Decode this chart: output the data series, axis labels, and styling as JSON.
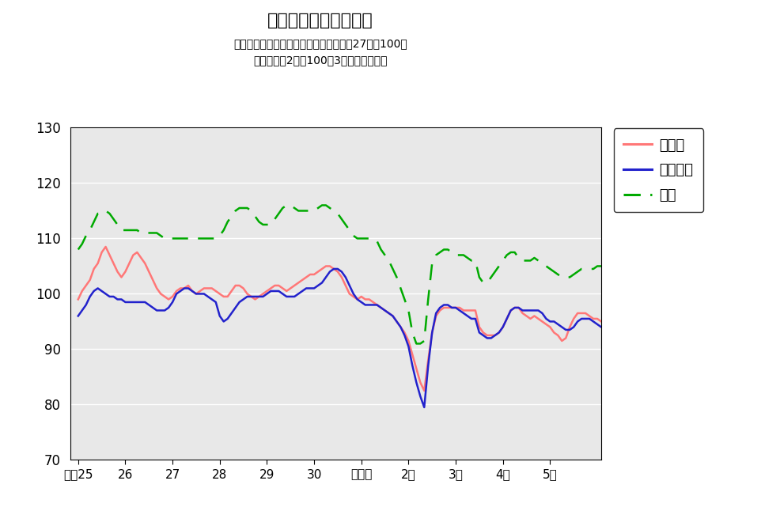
{
  "title": "鉱工業生産指数の推移",
  "subtitle_line1": "（季節調整済、鳥取県・中国地方：平成27年＝100、",
  "subtitle_line2": "全国：令和2年＝100、3ヶ月移動平均）",
  "ylim": [
    70,
    130
  ],
  "yticks": [
    70,
    80,
    90,
    100,
    110,
    120,
    130
  ],
  "legend_labels": [
    "鳥取県",
    "中国地方",
    "全国"
  ],
  "line_colors": [
    "#FF7777",
    "#2222CC",
    "#00AA00"
  ],
  "x_labels": [
    "平成25",
    "26",
    "27",
    "28",
    "29",
    "30",
    "令和元",
    "2年",
    "3年",
    "4年",
    "5年"
  ],
  "x_tick_positions": [
    0,
    12,
    24,
    36,
    48,
    60,
    72,
    84,
    96,
    108,
    120
  ],
  "bg_color": "#E8E8E8",
  "grid_color": "#FFFFFF",
  "tottori": [
    99.0,
    100.5,
    101.5,
    102.5,
    104.5,
    105.5,
    107.5,
    108.5,
    107.0,
    105.5,
    104.0,
    103.0,
    104.0,
    105.5,
    107.0,
    107.5,
    106.5,
    105.5,
    104.0,
    102.5,
    101.0,
    100.0,
    99.5,
    99.0,
    99.5,
    100.5,
    101.0,
    101.0,
    101.5,
    100.5,
    100.0,
    100.5,
    101.0,
    101.0,
    101.0,
    100.5,
    100.0,
    99.5,
    99.5,
    100.5,
    101.5,
    101.5,
    101.0,
    100.0,
    99.5,
    99.0,
    99.5,
    100.0,
    100.5,
    101.0,
    101.5,
    101.5,
    101.0,
    100.5,
    101.0,
    101.5,
    102.0,
    102.5,
    103.0,
    103.5,
    103.5,
    104.0,
    104.5,
    105.0,
    105.0,
    104.5,
    104.0,
    103.0,
    101.5,
    100.0,
    99.5,
    99.0,
    99.5,
    99.0,
    99.0,
    98.5,
    98.0,
    97.5,
    97.0,
    96.5,
    96.0,
    95.0,
    94.0,
    93.0,
    91.5,
    89.0,
    86.5,
    84.0,
    82.5,
    88.0,
    93.0,
    96.0,
    97.0,
    97.5,
    97.5,
    97.5,
    97.5,
    97.5,
    97.0,
    97.0,
    97.0,
    97.0,
    94.0,
    93.0,
    92.5,
    92.5,
    92.5,
    93.0,
    94.0,
    95.5,
    97.0,
    97.5,
    97.5,
    96.5,
    96.0,
    95.5,
    96.0,
    95.5,
    95.0,
    94.5,
    94.0,
    93.0,
    92.5,
    91.5,
    92.0,
    94.0,
    95.5,
    96.5,
    96.5,
    96.5,
    96.0,
    95.5,
    95.5,
    95.0
  ],
  "chugoku": [
    96.0,
    97.0,
    98.0,
    99.5,
    100.5,
    101.0,
    100.5,
    100.0,
    99.5,
    99.5,
    99.0,
    99.0,
    98.5,
    98.5,
    98.5,
    98.5,
    98.5,
    98.5,
    98.0,
    97.5,
    97.0,
    97.0,
    97.0,
    97.5,
    98.5,
    100.0,
    100.5,
    101.0,
    101.0,
    100.5,
    100.0,
    100.0,
    100.0,
    99.5,
    99.0,
    98.5,
    96.0,
    95.0,
    95.5,
    96.5,
    97.5,
    98.5,
    99.0,
    99.5,
    99.5,
    99.5,
    99.5,
    99.5,
    100.0,
    100.5,
    100.5,
    100.5,
    100.0,
    99.5,
    99.5,
    99.5,
    100.0,
    100.5,
    101.0,
    101.0,
    101.0,
    101.5,
    102.0,
    103.0,
    104.0,
    104.5,
    104.5,
    104.0,
    103.0,
    101.5,
    100.0,
    99.0,
    98.5,
    98.0,
    98.0,
    98.0,
    98.0,
    97.5,
    97.0,
    96.5,
    96.0,
    95.0,
    94.0,
    92.5,
    90.5,
    87.0,
    84.0,
    81.5,
    79.5,
    87.0,
    93.0,
    96.5,
    97.5,
    98.0,
    98.0,
    97.5,
    97.5,
    97.0,
    96.5,
    96.0,
    95.5,
    95.5,
    93.0,
    92.5,
    92.0,
    92.0,
    92.5,
    93.0,
    94.0,
    95.5,
    97.0,
    97.5,
    97.5,
    97.0,
    97.0,
    97.0,
    97.0,
    97.0,
    96.5,
    95.5,
    95.0,
    95.0,
    94.5,
    94.0,
    93.5,
    93.5,
    94.0,
    95.0,
    95.5,
    95.5,
    95.5,
    95.0,
    94.5,
    94.0
  ],
  "zenkoku": [
    108.0,
    109.0,
    110.5,
    111.5,
    113.0,
    114.5,
    114.5,
    115.0,
    114.5,
    113.5,
    112.5,
    111.5,
    111.5,
    111.5,
    111.5,
    111.5,
    111.0,
    111.0,
    111.0,
    111.0,
    111.0,
    110.5,
    110.0,
    110.0,
    110.0,
    110.0,
    110.0,
    110.0,
    110.0,
    110.0,
    110.0,
    110.0,
    110.0,
    110.0,
    110.0,
    110.0,
    110.5,
    111.5,
    113.0,
    114.0,
    115.0,
    115.5,
    115.5,
    115.5,
    115.0,
    114.0,
    113.0,
    112.5,
    112.5,
    112.5,
    113.5,
    114.5,
    115.5,
    116.0,
    116.0,
    115.5,
    115.0,
    115.0,
    115.0,
    115.0,
    115.0,
    115.5,
    116.0,
    116.0,
    115.5,
    115.0,
    114.5,
    113.5,
    112.5,
    111.5,
    110.5,
    110.0,
    110.0,
    110.0,
    110.0,
    110.0,
    109.5,
    108.0,
    107.0,
    106.0,
    104.5,
    103.0,
    101.0,
    99.0,
    97.0,
    93.0,
    91.0,
    91.0,
    91.5,
    99.0,
    105.5,
    107.0,
    107.5,
    108.0,
    108.0,
    107.5,
    107.0,
    107.0,
    107.0,
    106.5,
    106.0,
    106.0,
    103.0,
    102.0,
    102.0,
    103.0,
    104.0,
    105.0,
    106.0,
    107.0,
    107.5,
    107.5,
    106.5,
    106.0,
    106.0,
    106.0,
    106.5,
    106.0,
    105.5,
    105.0,
    104.5,
    104.0,
    103.5,
    103.0,
    103.0,
    103.0,
    103.5,
    104.0,
    104.5,
    104.5,
    104.5,
    104.5,
    105.0,
    105.0
  ]
}
